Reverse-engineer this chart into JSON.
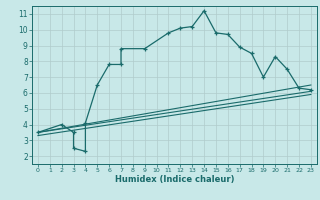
{
  "xlabel": "Humidex (Indice chaleur)",
  "xlim": [
    -0.5,
    23.5
  ],
  "ylim": [
    1.5,
    11.5
  ],
  "xticks": [
    0,
    1,
    2,
    3,
    4,
    5,
    6,
    7,
    8,
    9,
    10,
    11,
    12,
    13,
    14,
    15,
    16,
    17,
    18,
    19,
    20,
    21,
    22,
    23
  ],
  "yticks": [
    2,
    3,
    4,
    5,
    6,
    7,
    8,
    9,
    10,
    11
  ],
  "bg_color": "#c8e8e8",
  "line_color": "#1a6b6b",
  "grid_color": "#b0cccc",
  "main_line": {
    "x": [
      0,
      2,
      3,
      3,
      4,
      4,
      5,
      6,
      7,
      7,
      9,
      11,
      12,
      13,
      14,
      15,
      16,
      17,
      18,
      19,
      20,
      21,
      22,
      23
    ],
    "y": [
      3.5,
      4.0,
      3.5,
      2.5,
      2.3,
      4.1,
      6.5,
      7.8,
      7.8,
      8.8,
      8.8,
      9.8,
      10.1,
      10.2,
      11.2,
      9.8,
      9.7,
      8.9,
      8.5,
      7.0,
      8.3,
      7.5,
      6.3,
      6.2
    ]
  },
  "reg_lines": [
    {
      "x": [
        0,
        23
      ],
      "y": [
        3.5,
        6.5
      ]
    },
    {
      "x": [
        0,
        23
      ],
      "y": [
        3.5,
        6.1
      ]
    },
    {
      "x": [
        0,
        23
      ],
      "y": [
        3.3,
        5.9
      ]
    }
  ]
}
